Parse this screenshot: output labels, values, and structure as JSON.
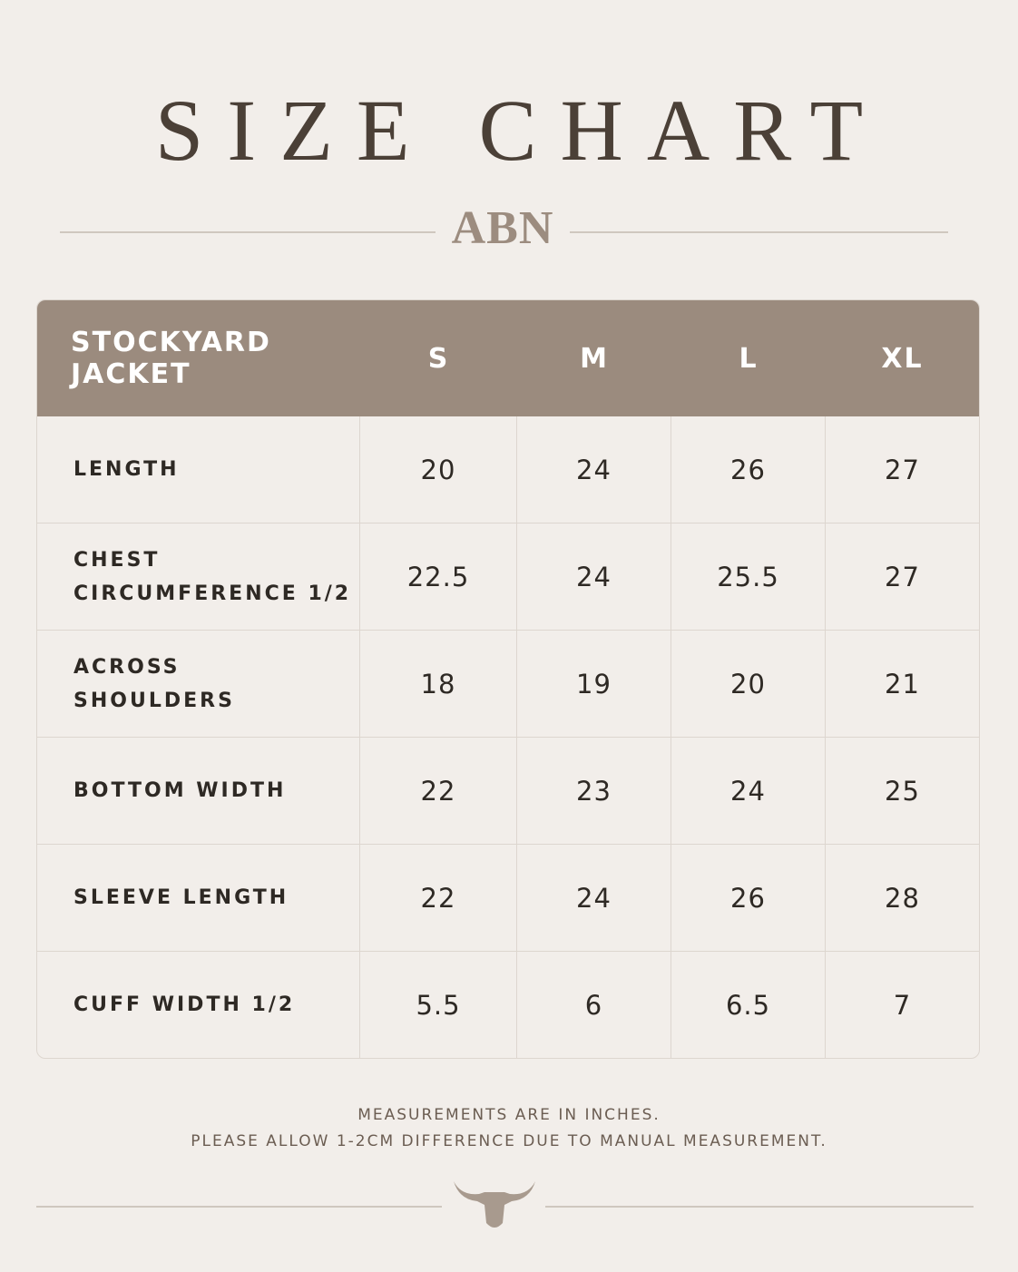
{
  "header": {
    "title": "SIZE CHART",
    "brand": "ABN"
  },
  "table": {
    "columns": [
      "STOCKYARD JACKET",
      "S",
      "M",
      "L",
      "XL"
    ],
    "rows": [
      [
        "LENGTH",
        "20",
        "24",
        "26",
        "27"
      ],
      [
        "CHEST\nCIRCUMFERENCE 1/2",
        "22.5",
        "24",
        "25.5",
        "27"
      ],
      [
        "ACROSS\nSHOULDERS",
        "18",
        "19",
        "20",
        "21"
      ],
      [
        "BOTTOM WIDTH",
        "22",
        "23",
        "24",
        "25"
      ],
      [
        "SLEEVE LENGTH",
        "22",
        "24",
        "26",
        "28"
      ],
      [
        "CUFF WIDTH 1/2",
        "5.5",
        "6",
        "6.5",
        "7"
      ]
    ]
  },
  "footer": {
    "notes": [
      "MEASUREMENTS ARE IN INCHES.",
      "PLEASE ALLOW 1-2CM DIFFERENCE DUE TO MANUAL MEASUREMENT."
    ]
  }
}
